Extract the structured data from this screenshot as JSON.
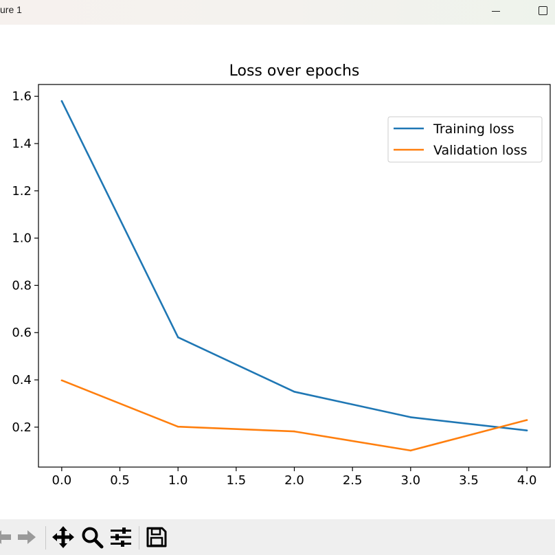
{
  "window": {
    "title": "ure 1",
    "minimize_icon": "minimize-icon",
    "maximize_icon": "maximize-icon"
  },
  "toolbar": {
    "icons": [
      "back-arrow-icon",
      "forward-arrow-icon",
      "pan-move-icon",
      "zoom-magnifier-icon",
      "subplots-sliders-icon",
      "save-floppy-icon"
    ]
  },
  "chart_data": {
    "type": "line",
    "title": "Loss over epochs",
    "xlabel": "",
    "ylabel": "",
    "x": [
      0.0,
      1.0,
      2.0,
      3.0,
      4.0
    ],
    "series": [
      {
        "name": "Training loss",
        "values": [
          1.58,
          0.58,
          0.35,
          0.242,
          0.186
        ],
        "color": "#1f77b4"
      },
      {
        "name": "Validation loss",
        "values": [
          0.398,
          0.202,
          0.182,
          0.101,
          0.23
        ],
        "color": "#ff7f0e"
      }
    ],
    "xlim": [
      -0.2,
      4.2
    ],
    "ylim": [
      0.031,
      1.65
    ],
    "xticks": [
      "0.0",
      "0.5",
      "1.0",
      "1.5",
      "2.0",
      "2.5",
      "3.0",
      "3.5",
      "4.0"
    ],
    "yticks": [
      "0.2",
      "0.4",
      "0.6",
      "0.8",
      "1.0",
      "1.2",
      "1.4",
      "1.6"
    ],
    "grid": false,
    "legend_position": "top-right"
  }
}
